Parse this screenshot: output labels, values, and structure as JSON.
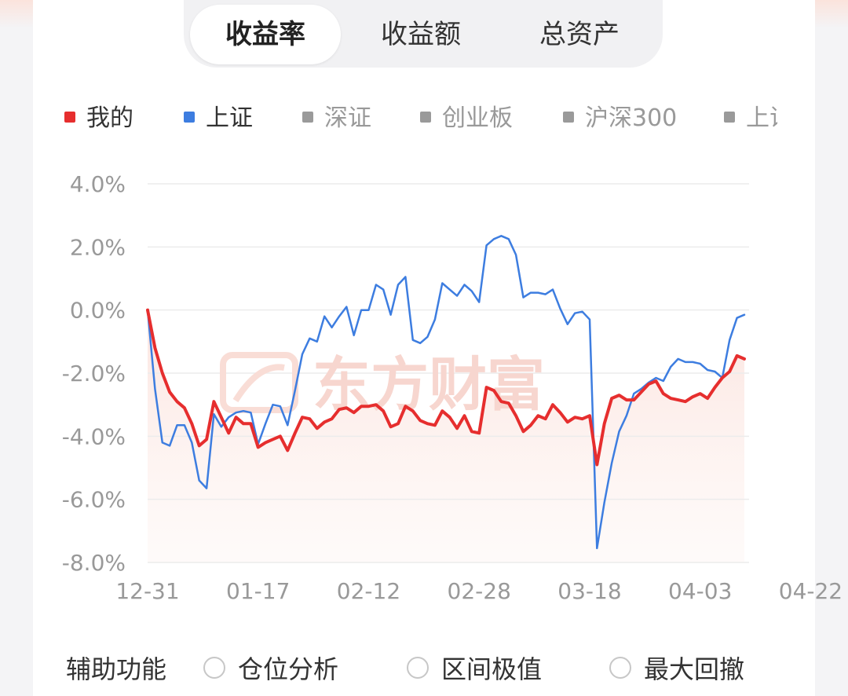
{
  "tabs": [
    {
      "label": "收益率",
      "active": true
    },
    {
      "label": "收益额",
      "active": false
    },
    {
      "label": "总资产",
      "active": false
    }
  ],
  "legend": [
    {
      "label": "我的",
      "color": "#e62e2e",
      "active": true
    },
    {
      "label": "上证",
      "color": "#3d7de0",
      "active": true
    },
    {
      "label": "深证",
      "color": "#9a9a9a",
      "active": false
    },
    {
      "label": "创业板",
      "color": "#9a9a9a",
      "active": false
    },
    {
      "label": "沪深300",
      "color": "#9a9a9a",
      "active": false
    },
    {
      "label": "上证",
      "color": "#9a9a9a",
      "active": false
    }
  ],
  "watermark": "东方财富",
  "chart_data": {
    "type": "line",
    "ylim": [
      -8,
      4
    ],
    "yticks": [
      4,
      2,
      0,
      -2,
      -4,
      -6,
      -8
    ],
    "ytick_labels": [
      "4.0%",
      "2.0%",
      "0.0%",
      "-2.0%",
      "-4.0%",
      "-6.0%",
      "-8.0%"
    ],
    "xtick_labels": [
      "12-31",
      "01-17",
      "02-12",
      "02-28",
      "03-18",
      "04-03",
      "04-22"
    ],
    "xtick_index": [
      0,
      15,
      30,
      45,
      60,
      75,
      90
    ],
    "grid": true,
    "series": [
      {
        "name": "我的",
        "color": "#e62e2e",
        "values": [
          0,
          -1.2,
          -2.0,
          -2.6,
          -2.9,
          -3.1,
          -3.6,
          -4.3,
          -4.1,
          -2.9,
          -3.4,
          -3.9,
          -3.4,
          -3.6,
          -3.6,
          -4.35,
          -4.2,
          -4.1,
          -4.0,
          -4.45,
          -3.9,
          -3.4,
          -3.45,
          -3.75,
          -3.55,
          -3.45,
          -3.15,
          -3.1,
          -3.25,
          -3.05,
          -3.05,
          -3.0,
          -3.2,
          -3.7,
          -3.6,
          -3.05,
          -3.2,
          -3.5,
          -3.6,
          -3.65,
          -3.2,
          -3.4,
          -3.75,
          -3.35,
          -3.85,
          -3.9,
          -2.45,
          -2.55,
          -2.9,
          -2.95,
          -3.35,
          -3.85,
          -3.65,
          -3.35,
          -3.45,
          -3.0,
          -3.25,
          -3.55,
          -3.4,
          -3.45,
          -3.35,
          -4.9,
          -3.6,
          -2.8,
          -2.7,
          -2.85,
          -2.85,
          -2.6,
          -2.35,
          -2.25,
          -2.65,
          -2.8,
          -2.85,
          -2.9,
          -2.75,
          -2.65,
          -2.8,
          -2.45,
          -2.15,
          -1.95,
          -1.45,
          -1.55
        ]
      },
      {
        "name": "上证",
        "color": "#3d7de0",
        "values": [
          0,
          -2.5,
          -4.2,
          -4.3,
          -3.65,
          -3.65,
          -4.2,
          -5.4,
          -5.65,
          -3.3,
          -3.7,
          -3.4,
          -3.25,
          -3.2,
          -3.25,
          -4.25,
          -3.6,
          -3.0,
          -3.05,
          -3.65,
          -2.55,
          -1.4,
          -0.9,
          -1.0,
          -0.2,
          -0.55,
          -0.2,
          0.1,
          -0.8,
          0.0,
          0.0,
          0.8,
          0.65,
          -0.15,
          0.8,
          1.05,
          -0.95,
          -1.05,
          -0.85,
          -0.3,
          0.85,
          0.65,
          0.45,
          0.8,
          0.6,
          0.25,
          2.05,
          2.25,
          2.35,
          2.25,
          1.75,
          0.4,
          0.55,
          0.55,
          0.5,
          0.65,
          0.05,
          -0.45,
          -0.1,
          -0.05,
          -0.3,
          -7.55,
          -6.1,
          -4.85,
          -3.85,
          -3.35,
          -2.65,
          -2.5,
          -2.3,
          -2.15,
          -2.25,
          -1.8,
          -1.55,
          -1.65,
          -1.65,
          -1.7,
          -1.9,
          -1.95,
          -2.15,
          -0.95,
          -0.25,
          -0.15
        ]
      }
    ]
  },
  "aux": {
    "title": "辅助功能",
    "options": [
      "仓位分析",
      "区间极值",
      "最大回撤"
    ]
  }
}
